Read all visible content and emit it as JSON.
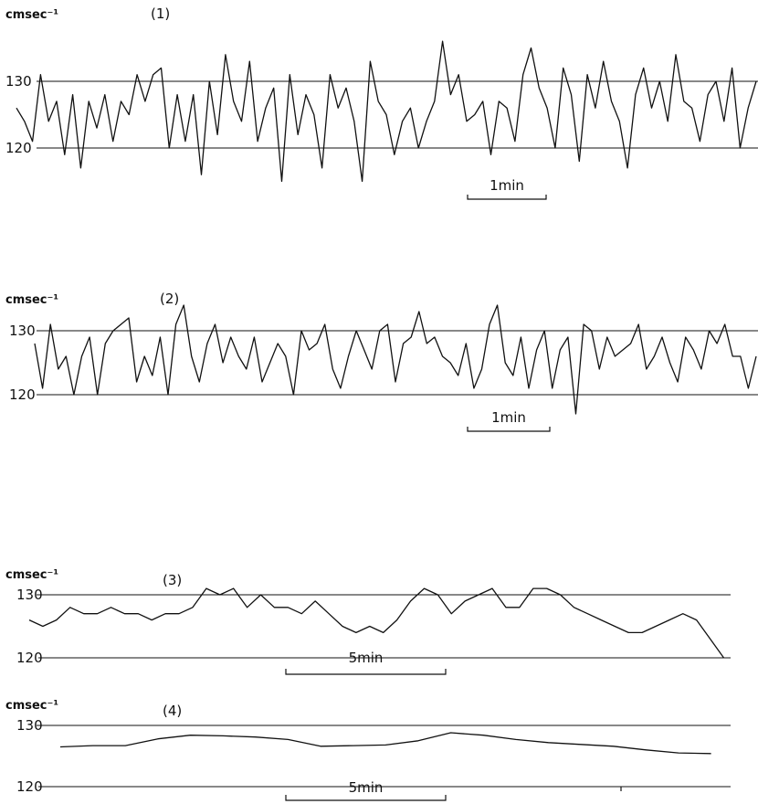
{
  "chart_data": [
    {
      "type": "line",
      "panel_label": "(1)",
      "ylabel": "cmsec⁻¹",
      "ytick_labels": [
        "130",
        "120"
      ],
      "yticks": [
        130,
        120
      ],
      "ylim": [
        114,
        140
      ],
      "xlim": [
        0,
        9.2
      ],
      "scale_bar_label": "1min",
      "scale_bar": [
        5.5,
        6.5
      ],
      "series": [
        {
          "x": [
            0,
            0.1,
            0.2,
            0.3,
            0.4,
            0.5,
            0.6,
            0.7,
            0.8,
            0.9,
            1.0,
            1.1,
            1.2,
            1.3,
            1.4,
            1.5,
            1.6,
            1.7,
            1.8,
            1.9,
            2.0,
            2.1,
            2.2,
            2.3,
            2.4,
            2.5,
            2.6,
            2.7,
            2.8,
            2.9,
            3.0,
            3.1,
            3.2,
            3.3,
            3.4,
            3.5,
            3.6,
            3.7,
            3.8,
            3.9,
            4.0,
            4.1,
            4.2,
            4.3,
            4.4,
            4.5,
            4.6,
            4.7,
            4.8,
            4.9,
            5.0,
            5.1,
            5.2,
            5.3,
            5.4,
            5.5,
            5.6,
            5.7,
            5.8,
            5.9,
            6.0,
            6.1,
            6.2,
            6.3,
            6.4,
            6.5,
            6.6,
            6.7,
            6.8,
            6.9,
            7.0,
            7.1,
            7.2,
            7.3,
            7.4,
            7.5,
            7.6,
            7.7,
            7.8,
            7.9,
            8.0,
            8.1,
            8.2,
            8.3,
            8.4,
            8.5,
            8.6,
            8.7,
            8.8,
            8.9,
            9.0,
            9.1,
            9.2
          ],
          "values": [
            126,
            124,
            121,
            131,
            124,
            127,
            119,
            128,
            117,
            127,
            123,
            128,
            121,
            127,
            125,
            131,
            127,
            131,
            132,
            120,
            128,
            121,
            128,
            116,
            130,
            122,
            134,
            127,
            124,
            133,
            121,
            126,
            129,
            115,
            131,
            122,
            128,
            125,
            117,
            131,
            126,
            129,
            124,
            115,
            133,
            127,
            125,
            119,
            124,
            126,
            120,
            124,
            127,
            136,
            128,
            131,
            124,
            125,
            127,
            119,
            127,
            126,
            121,
            131,
            135,
            129,
            126,
            120,
            132,
            128,
            118,
            131,
            126,
            133,
            127,
            124,
            117,
            128,
            132,
            126,
            130,
            124,
            134,
            127,
            126,
            121,
            128,
            130,
            124,
            132,
            120,
            126,
            130
          ]
        }
      ]
    },
    {
      "type": "line",
      "panel_label": "(2)",
      "ylabel": "cmsec⁻¹",
      "ytick_labels": [
        "130",
        "120"
      ],
      "yticks": [
        130,
        120
      ],
      "ylim": [
        114,
        138
      ],
      "xlim": [
        0,
        9.2
      ],
      "scale_bar_label": "1min",
      "scale_bar": [
        5.5,
        6.5
      ],
      "series": [
        {
          "x": [
            0,
            0.1,
            0.2,
            0.3,
            0.4,
            0.5,
            0.6,
            0.7,
            0.8,
            0.9,
            1.0,
            1.1,
            1.2,
            1.3,
            1.4,
            1.5,
            1.6,
            1.7,
            1.8,
            1.9,
            2.0,
            2.1,
            2.2,
            2.3,
            2.4,
            2.5,
            2.6,
            2.7,
            2.8,
            2.9,
            3.0,
            3.1,
            3.2,
            3.3,
            3.4,
            3.5,
            3.6,
            3.7,
            3.8,
            3.9,
            4.0,
            4.1,
            4.2,
            4.3,
            4.4,
            4.5,
            4.6,
            4.7,
            4.8,
            4.9,
            5.0,
            5.1,
            5.2,
            5.3,
            5.4,
            5.5,
            5.6,
            5.7,
            5.8,
            5.9,
            6.0,
            6.1,
            6.2,
            6.3,
            6.4,
            6.5,
            6.6,
            6.7,
            6.8,
            6.9,
            7.0,
            7.1,
            7.2,
            7.3,
            7.4,
            7.5,
            7.6,
            7.7,
            7.8,
            7.9,
            8.0,
            8.1,
            8.2,
            8.3,
            8.4,
            8.5,
            8.6,
            8.7,
            8.8,
            8.9,
            9.0,
            9.1,
            9.2
          ],
          "values": [
            128,
            121,
            131,
            124,
            126,
            120,
            126,
            129,
            120,
            128,
            130,
            131,
            132,
            122,
            126,
            123,
            129,
            120,
            131,
            134,
            126,
            122,
            128,
            131,
            125,
            129,
            126,
            124,
            129,
            122,
            125,
            128,
            126,
            120,
            130,
            127,
            128,
            131,
            124,
            121,
            126,
            130,
            127,
            124,
            130,
            131,
            122,
            128,
            129,
            133,
            128,
            129,
            126,
            125,
            123,
            128,
            121,
            124,
            131,
            134,
            125,
            123,
            129,
            121,
            127,
            130,
            121,
            127,
            129,
            117,
            131,
            130,
            124,
            129,
            126,
            127,
            128,
            131,
            124,
            126,
            129,
            125,
            122,
            129,
            127,
            124,
            130,
            128,
            131,
            126,
            126,
            121,
            126
          ]
        }
      ]
    },
    {
      "type": "line",
      "panel_label": "(3)",
      "ylabel": "cmsec⁻¹",
      "ytick_labels": [
        "130",
        "120"
      ],
      "yticks": [
        130,
        120
      ],
      "ylim": [
        117,
        135
      ],
      "xlim": [
        0,
        20.6
      ],
      "scale_bar_label": "5min",
      "scale_bar": [
        7.5,
        12.5
      ],
      "series": [
        {
          "x": [
            0,
            0.4,
            0.8,
            1.2,
            1.6,
            2.0,
            2.4,
            2.8,
            3.2,
            3.6,
            4.0,
            4.4,
            4.8,
            5.2,
            5.6,
            6.0,
            6.4,
            6.8,
            7.2,
            7.6,
            8.0,
            8.4,
            8.8,
            9.2,
            9.6,
            10.0,
            10.4,
            10.8,
            11.2,
            11.6,
            12.0,
            12.4,
            12.8,
            13.2,
            13.6,
            14.0,
            14.4,
            14.8,
            15.2,
            15.6,
            16.0,
            16.4,
            16.8,
            17.2,
            17.6,
            18.0,
            18.4,
            18.8,
            19.2,
            19.6,
            20.0,
            20.4
          ],
          "values": [
            126,
            125,
            126,
            128,
            127,
            127,
            128,
            127,
            127,
            126,
            127,
            127,
            128,
            131,
            130,
            131,
            128,
            130,
            128,
            128,
            127,
            129,
            127,
            125,
            124,
            125,
            124,
            126,
            129,
            131,
            130,
            127,
            129,
            130,
            131,
            128,
            128,
            131,
            131,
            130,
            128,
            127,
            126,
            125,
            124,
            124,
            125,
            126,
            127,
            126,
            123,
            120
          ]
        }
      ]
    },
    {
      "type": "line",
      "panel_label": "(4)",
      "ylabel": "cmsec⁻¹",
      "ytick_labels": [
        "130",
        "120"
      ],
      "yticks": [
        130,
        120
      ],
      "ylim": [
        117,
        133
      ],
      "xlim": [
        0,
        20.6
      ],
      "scale_bar_label": "5min",
      "scale_bar": [
        7.5,
        12.5
      ],
      "series": [
        {
          "x": [
            0,
            1,
            2,
            3,
            4,
            5,
            6,
            7,
            8,
            9,
            10,
            11,
            12,
            13,
            14,
            15,
            16,
            17,
            18,
            19,
            20
          ],
          "values": [
            126.5,
            126.7,
            126.7,
            127.8,
            128.4,
            128.3,
            128.1,
            127.7,
            126.6,
            126.7,
            126.8,
            127.5,
            128.8,
            128.4,
            127.7,
            127.2,
            126.9,
            126.6,
            126.0,
            125.5,
            125.4
          ]
        }
      ]
    }
  ]
}
